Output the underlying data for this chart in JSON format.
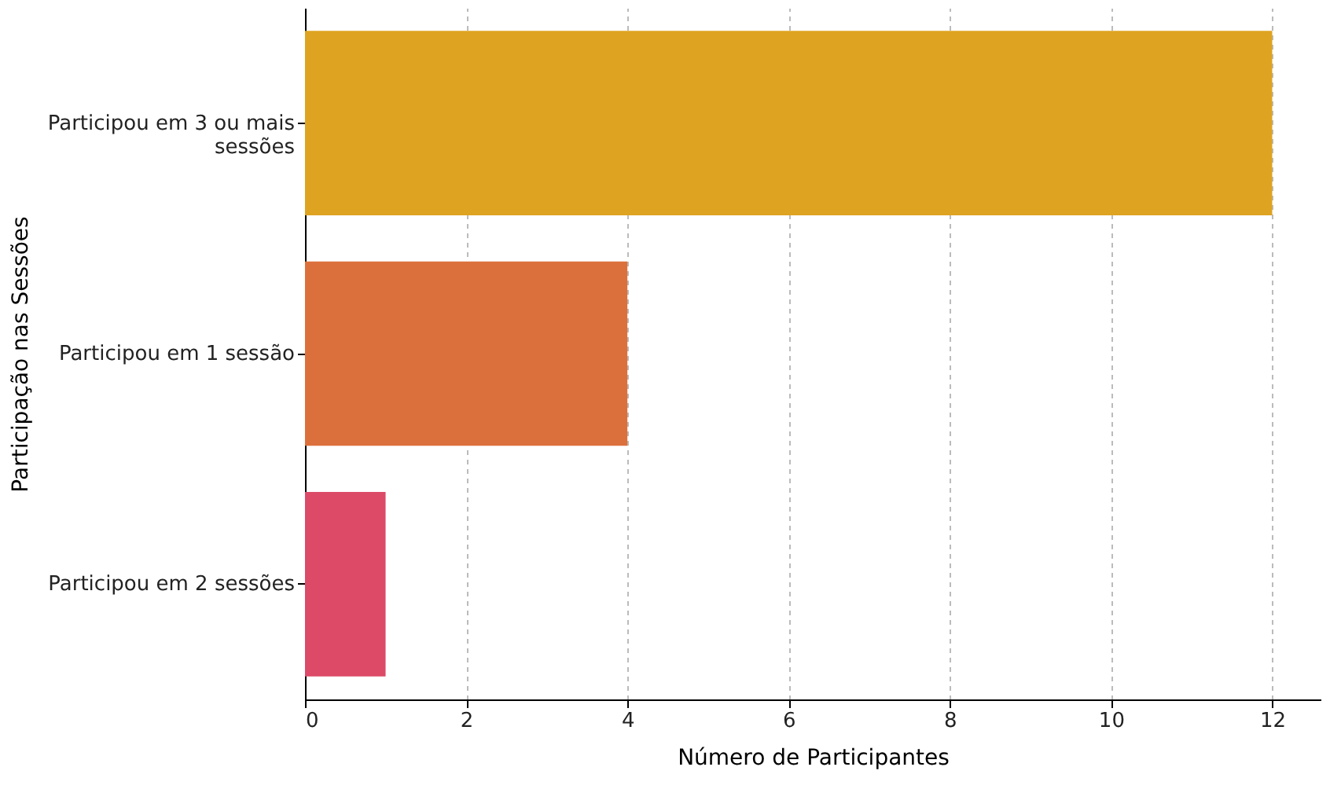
{
  "chart_data": {
    "type": "bar",
    "orientation": "horizontal",
    "xlabel": "Número de Participantes",
    "ylabel": "Participação nas Sessões",
    "categories": [
      "Participou em 3 ou mais sessões",
      "Participou em 1 sessão",
      "Participou em 2 sessões"
    ],
    "values": [
      12,
      4,
      1
    ],
    "colors": [
      "#dea321",
      "#dc703c",
      "#dc4a68"
    ],
    "xlim": [
      0,
      12.6
    ],
    "xticks": [
      0,
      2,
      4,
      6,
      8,
      10,
      12
    ],
    "grid": "x"
  }
}
